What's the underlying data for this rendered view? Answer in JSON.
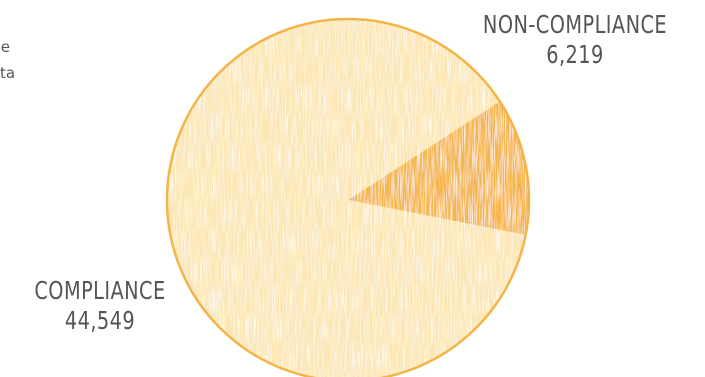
{
  "side_text": [
    "e",
    "ta"
  ],
  "colors": {
    "slice_light": "#fce6b3",
    "slice_dark": "#f5b64c",
    "outline": "#f3b54a",
    "text": "#555555"
  },
  "chart_data": {
    "type": "pie",
    "slices": [
      {
        "label": "NON-COMPLIANCE",
        "value": 6219,
        "display_value": "6,219",
        "color": "#f5b64c"
      },
      {
        "label": "COMPLIANCE",
        "value": 44549,
        "display_value": "44,549",
        "color": "#fce6b3"
      }
    ],
    "start_angle_deg": -33
  }
}
